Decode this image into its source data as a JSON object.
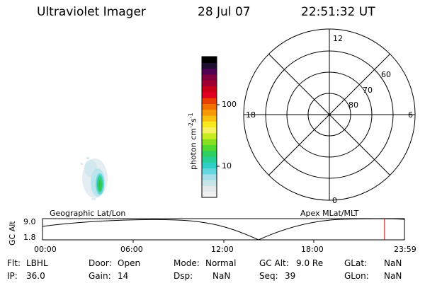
{
  "header": {
    "title": "Ultraviolet Imager",
    "date": "28 Jul 07",
    "time": "22:51:32 UT"
  },
  "colorbar": {
    "label": "photon cm",
    "label_exp1": "-2",
    "label_mid": "s",
    "label_exp2": "-1",
    "tick_labels": [
      "100",
      "10"
    ],
    "colors": [
      "#f0f0f0",
      "#e4eaea",
      "#c8e6ea",
      "#a8e0ea",
      "#64d8e0",
      "#30d0c8",
      "#28d098",
      "#30d060",
      "#50d830",
      "#88e020",
      "#c8ec20",
      "#f8f060",
      "#f8e820",
      "#f8c010",
      "#f89808",
      "#f07000",
      "#e84000",
      "#e00020",
      "#c80018",
      "#a00030",
      "#800040",
      "#500050",
      "#201030",
      "#000000"
    ]
  },
  "polar": {
    "mlt_labels": {
      "top": "12",
      "left": "18",
      "right": "6",
      "bottom": "0"
    },
    "lat_labels": [
      "60",
      "70",
      "80"
    ]
  },
  "image": {
    "left_label": "Geographic Lat/Lon",
    "right_label": "Apex MLat/MLT"
  },
  "timeline": {
    "ylabel": "GC Alt",
    "ytick_top": "9.0",
    "ytick_bottom": "1.8",
    "xticks": [
      "00:00",
      "06:00",
      "12:00",
      "18:00",
      "23:59"
    ],
    "current_fraction": 0.945,
    "marker_color": "#c00000"
  },
  "info": {
    "flt_label": "Flt:",
    "flt_value": "LBHL",
    "ip_label": "IP:",
    "ip_value": "36.0",
    "door_label": "Door:",
    "door_value": "Open",
    "gain_label": "Gain:",
    "gain_value": "14",
    "mode_label": "Mode:",
    "mode_value": "Normal",
    "dsp_label": "Dsp:",
    "dsp_value": "NaN",
    "gcalt_label": "GC Alt:",
    "gcalt_value": "9.0 Re",
    "seq_label": "Seq:",
    "seq_value": "39",
    "glat_label": "GLat:",
    "glat_value": "NaN",
    "glon_label": "GLon:",
    "glon_value": "NaN"
  }
}
